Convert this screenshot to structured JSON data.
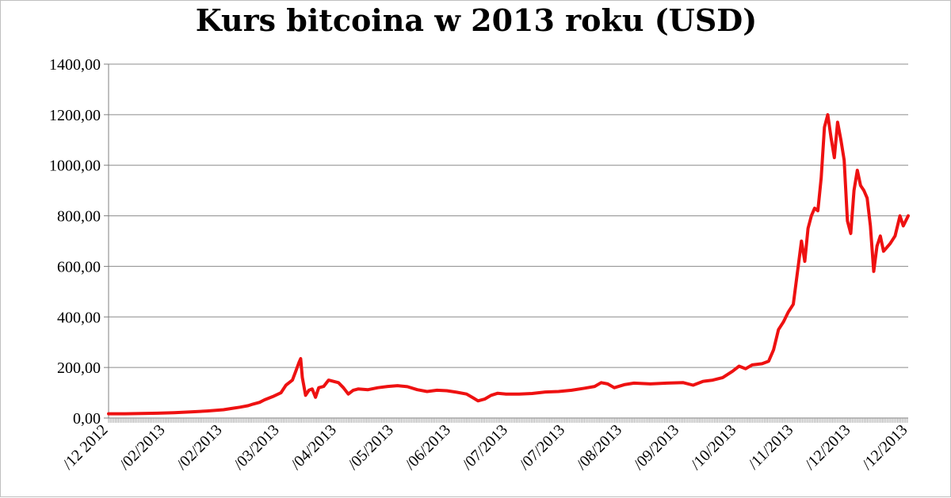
{
  "chart_data": {
    "type": "line",
    "title": "Kurs bitcoina w 2013 roku (USD)",
    "xlabel": "",
    "ylabel": "",
    "ylim": [
      0,
      1400
    ],
    "y_ticks": [
      "0,00",
      "200,00",
      "400,00",
      "600,00",
      "800,00",
      "1000,00",
      "1200,00",
      "1400,00"
    ],
    "x_tick_labels": [
      "/12 2012",
      "/02/2013",
      "/02/2013",
      "/03/2013",
      "/04/2013",
      "/05/2013",
      "/06/2013",
      "/07/2013",
      "/07/2013",
      "/08/2013",
      "/09/2013",
      "/10/2013",
      "/11/2013",
      "/12/2013",
      "/12/2013"
    ],
    "grid": true,
    "line_color": "#ee1111",
    "series": [
      {
        "values": [
          [
            0,
            17
          ],
          [
            10,
            17
          ],
          [
            20,
            18
          ],
          [
            30,
            19
          ],
          [
            40,
            21
          ],
          [
            50,
            24
          ],
          [
            60,
            28
          ],
          [
            70,
            33
          ],
          [
            75,
            38
          ],
          [
            80,
            43
          ],
          [
            85,
            49
          ],
          [
            88,
            55
          ],
          [
            92,
            62
          ],
          [
            95,
            72
          ],
          [
            100,
            85
          ],
          [
            105,
            100
          ],
          [
            108,
            130
          ],
          [
            112,
            150
          ],
          [
            114,
            185
          ],
          [
            116,
            220
          ],
          [
            117,
            235
          ],
          [
            118,
            160
          ],
          [
            120,
            90
          ],
          [
            122,
            110
          ],
          [
            124,
            115
          ],
          [
            126,
            82
          ],
          [
            128,
            120
          ],
          [
            131,
            125
          ],
          [
            134,
            150
          ],
          [
            137,
            145
          ],
          [
            140,
            140
          ],
          [
            143,
            120
          ],
          [
            146,
            95
          ],
          [
            149,
            110
          ],
          [
            152,
            115
          ],
          [
            158,
            112
          ],
          [
            164,
            120
          ],
          [
            170,
            125
          ],
          [
            176,
            128
          ],
          [
            182,
            124
          ],
          [
            188,
            112
          ],
          [
            194,
            105
          ],
          [
            200,
            110
          ],
          [
            206,
            108
          ],
          [
            212,
            102
          ],
          [
            218,
            95
          ],
          [
            222,
            80
          ],
          [
            225,
            68
          ],
          [
            229,
            75
          ],
          [
            233,
            90
          ],
          [
            237,
            98
          ],
          [
            242,
            95
          ],
          [
            250,
            95
          ],
          [
            258,
            97
          ],
          [
            266,
            103
          ],
          [
            274,
            105
          ],
          [
            282,
            110
          ],
          [
            290,
            118
          ],
          [
            296,
            125
          ],
          [
            300,
            140
          ],
          [
            304,
            135
          ],
          [
            308,
            120
          ],
          [
            314,
            132
          ],
          [
            320,
            138
          ],
          [
            330,
            135
          ],
          [
            340,
            138
          ],
          [
            350,
            140
          ],
          [
            356,
            130
          ],
          [
            362,
            145
          ],
          [
            368,
            150
          ],
          [
            374,
            160
          ],
          [
            380,
            185
          ],
          [
            384,
            205
          ],
          [
            388,
            195
          ],
          [
            392,
            210
          ],
          [
            398,
            215
          ],
          [
            402,
            225
          ],
          [
            405,
            270
          ],
          [
            408,
            350
          ],
          [
            411,
            380
          ],
          [
            414,
            420
          ],
          [
            417,
            450
          ],
          [
            420,
            600
          ],
          [
            422,
            700
          ],
          [
            424,
            620
          ],
          [
            426,
            750
          ],
          [
            428,
            800
          ],
          [
            430,
            830
          ],
          [
            432,
            820
          ],
          [
            434,
            950
          ],
          [
            436,
            1150
          ],
          [
            438,
            1200
          ],
          [
            440,
            1110
          ],
          [
            442,
            1030
          ],
          [
            444,
            1170
          ],
          [
            446,
            1100
          ],
          [
            448,
            1020
          ],
          [
            450,
            780
          ],
          [
            452,
            730
          ],
          [
            454,
            900
          ],
          [
            456,
            980
          ],
          [
            458,
            920
          ],
          [
            460,
            900
          ],
          [
            462,
            870
          ],
          [
            464,
            760
          ],
          [
            466,
            580
          ],
          [
            468,
            680
          ],
          [
            470,
            720
          ],
          [
            472,
            660
          ],
          [
            476,
            690
          ],
          [
            479,
            720
          ],
          [
            482,
            800
          ],
          [
            484,
            760
          ],
          [
            487,
            800
          ]
        ]
      }
    ]
  }
}
